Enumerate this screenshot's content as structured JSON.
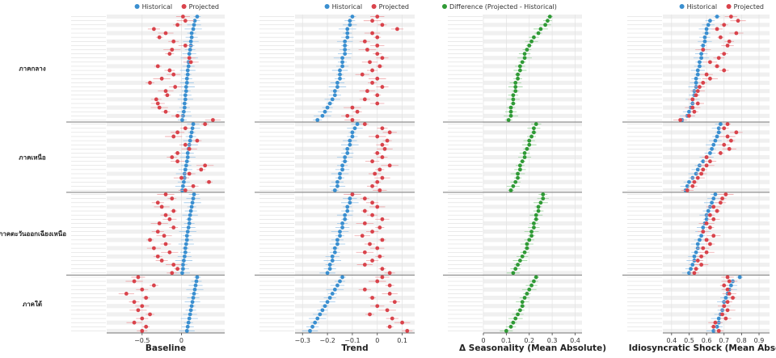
{
  "colors": {
    "historical": "#3a8fd0",
    "projected": "#d9434b",
    "difference": "#2f9a35",
    "historical_ci": "#9cc6e8",
    "projected_ci": "#eda3a6",
    "difference_ci": "#99d09b",
    "separator": "#7a7a7a",
    "stripe": "#f0f0f0",
    "grid": "#e2e2e2"
  },
  "regions": [
    "ภาคกลาง",
    "ภาคเหนือ",
    "ภาคตะวันออกเฉียงเหนือ",
    "ภาคใต้"
  ],
  "region_counts": [
    26,
    17,
    20,
    14
  ],
  "chart_data": [
    {
      "type": "scatter",
      "title": "Baseline",
      "xlim": [
        -0.95,
        0.55
      ],
      "ticks": [
        -0.5,
        0
      ],
      "tick_labels": [
        "−0.5",
        "0"
      ],
      "legend": {
        "position": "top-right",
        "entries": [
          "Historical",
          "Projected"
        ]
      },
      "series": [
        {
          "name": "Historical",
          "values": [
            0.2,
            0.17,
            0.16,
            0.15,
            0.13,
            0.13,
            0.12,
            0.12,
            0.11,
            0.1,
            0.1,
            0.09,
            0.09,
            0.08,
            0.08,
            0.07,
            0.07,
            0.06,
            0.06,
            0.05,
            0.05,
            0.04,
            0.04,
            0.03,
            0.02,
            0.01,
            0.15,
            0.14,
            0.13,
            0.12,
            0.11,
            0.1,
            0.09,
            0.08,
            0.08,
            0.07,
            0.06,
            0.05,
            0.04,
            0.04,
            0.03,
            0.02,
            0.01,
            0.16,
            0.15,
            0.14,
            0.13,
            0.12,
            0.11,
            0.1,
            0.1,
            0.09,
            0.08,
            0.07,
            0.07,
            0.06,
            0.05,
            0.05,
            0.04,
            0.03,
            0.02,
            0.02,
            0.01,
            0.2,
            0.19,
            0.18,
            0.17,
            0.16,
            0.15,
            0.14,
            0.13,
            0.12,
            0.11,
            0.1,
            0.09,
            0.08,
            0.07
          ]
        },
        {
          "name": "Projected",
          "values": [
            0.02,
            0.05,
            -0.05,
            -0.35,
            -0.2,
            -0.28,
            -0.1,
            0.05,
            -0.12,
            -0.15,
            0.1,
            0.12,
            -0.3,
            -0.15,
            -0.1,
            -0.25,
            -0.4,
            -0.08,
            -0.2,
            -0.18,
            -0.32,
            -0.3,
            -0.28,
            -0.2,
            -0.05,
            0.4,
            0.3,
            0.05,
            -0.05,
            -0.1,
            0.2,
            0.05,
            0.1,
            -0.05,
            -0.12,
            -0.05,
            0.3,
            0.25,
            0.1,
            0.0,
            0.35,
            0.15,
            0.05,
            -0.2,
            -0.12,
            -0.3,
            -0.25,
            -0.1,
            -0.2,
            -0.15,
            -0.28,
            -0.1,
            -0.3,
            -0.22,
            -0.4,
            -0.2,
            -0.35,
            -0.15,
            -0.3,
            -0.25,
            -0.1,
            -0.05,
            -0.12,
            -0.55,
            -0.6,
            -0.35,
            -0.5,
            -0.7,
            -0.45,
            -0.6,
            -0.5,
            -0.55,
            -0.4,
            -0.5,
            -0.6,
            -0.45,
            -0.5
          ]
        }
      ]
    },
    {
      "type": "scatter",
      "title": "Trend",
      "xlim": [
        -0.33,
        0.15
      ],
      "ticks": [
        -0.3,
        -0.2,
        -0.1,
        0,
        0.1
      ],
      "tick_labels": [
        "−0.3",
        "−0.2",
        "−0.1",
        "0",
        "0.1"
      ],
      "legend": {
        "position": "top-right",
        "entries": [
          "Historical",
          "Projected"
        ]
      },
      "series": [
        {
          "name": "Historical",
          "values": [
            -0.1,
            -0.11,
            -0.11,
            -0.12,
            -0.12,
            -0.12,
            -0.13,
            -0.13,
            -0.13,
            -0.13,
            -0.14,
            -0.14,
            -0.14,
            -0.15,
            -0.15,
            -0.15,
            -0.16,
            -0.16,
            -0.17,
            -0.17,
            -0.18,
            -0.19,
            -0.2,
            -0.21,
            -0.22,
            -0.24,
            -0.08,
            -0.09,
            -0.1,
            -0.1,
            -0.11,
            -0.11,
            -0.12,
            -0.12,
            -0.13,
            -0.13,
            -0.14,
            -0.14,
            -0.15,
            -0.15,
            -0.16,
            -0.16,
            -0.17,
            -0.1,
            -0.11,
            -0.11,
            -0.12,
            -0.12,
            -0.13,
            -0.13,
            -0.14,
            -0.14,
            -0.15,
            -0.15,
            -0.16,
            -0.16,
            -0.17,
            -0.17,
            -0.18,
            -0.18,
            -0.19,
            -0.19,
            -0.2,
            -0.14,
            -0.15,
            -0.16,
            -0.17,
            -0.18,
            -0.19,
            -0.2,
            -0.21,
            -0.22,
            -0.23,
            -0.24,
            -0.25,
            -0.26,
            -0.27
          ]
        },
        {
          "name": "Projected",
          "values": [
            0.0,
            -0.02,
            0.02,
            0.08,
            -0.02,
            0.0,
            -0.05,
            0.0,
            -0.04,
            0.0,
            0.02,
            -0.03,
            0.01,
            -0.02,
            -0.06,
            0.0,
            -0.02,
            0.02,
            -0.04,
            0.0,
            -0.05,
            0.0,
            -0.1,
            -0.08,
            -0.12,
            -0.1,
            -0.05,
            0.02,
            0.05,
            0.0,
            0.04,
            0.02,
            0.03,
            0.0,
            0.02,
            -0.02,
            0.05,
            0.01,
            -0.01,
            0.02,
            0.0,
            -0.02,
            0.01,
            -0.1,
            -0.05,
            -0.02,
            0.0,
            -0.05,
            -0.02,
            0.02,
            -0.05,
            0.01,
            -0.02,
            -0.06,
            0.02,
            -0.03,
            0.0,
            -0.05,
            0.01,
            -0.02,
            -0.05,
            0.02,
            0.05,
            0.02,
            0.0,
            0.05,
            -0.05,
            0.05,
            -0.02,
            0.07,
            0.0,
            0.04,
            -0.03,
            0.06,
            0.1,
            0.05,
            0.12
          ]
        }
      ]
    },
    {
      "type": "scatter",
      "title": "Δ Seasonality (Mean Absolute)",
      "xlim": [
        0,
        0.43
      ],
      "ticks": [
        0,
        0.1,
        0.2,
        0.3,
        0.4
      ],
      "tick_labels": [
        "0",
        "0.1",
        "0.2",
        "0.3",
        "0.4"
      ],
      "legend": {
        "position": "top-right",
        "entries": [
          "Difference (Projected - Historical)"
        ]
      },
      "series": [
        {
          "name": "Difference (Projected - Historical)",
          "values": [
            0.29,
            0.28,
            0.27,
            0.25,
            0.24,
            0.22,
            0.21,
            0.2,
            0.19,
            0.18,
            0.18,
            0.17,
            0.16,
            0.16,
            0.15,
            0.15,
            0.14,
            0.14,
            0.14,
            0.13,
            0.13,
            0.13,
            0.12,
            0.12,
            0.12,
            0.11,
            0.23,
            0.22,
            0.22,
            0.21,
            0.2,
            0.2,
            0.19,
            0.18,
            0.18,
            0.17,
            0.16,
            0.16,
            0.15,
            0.15,
            0.14,
            0.13,
            0.12,
            0.26,
            0.26,
            0.25,
            0.24,
            0.24,
            0.23,
            0.23,
            0.22,
            0.22,
            0.21,
            0.21,
            0.2,
            0.19,
            0.19,
            0.18,
            0.17,
            0.16,
            0.15,
            0.14,
            0.13,
            0.23,
            0.22,
            0.21,
            0.2,
            0.19,
            0.18,
            0.17,
            0.17,
            0.16,
            0.15,
            0.14,
            0.13,
            0.12,
            0.1
          ]
        }
      ]
    },
    {
      "type": "scatter",
      "title": "Idiosyncratic Shock (Mean Absolute)",
      "xlim": [
        0.35,
        0.96
      ],
      "ticks": [
        0.4,
        0.5,
        0.6,
        0.7,
        0.8,
        0.9
      ],
      "tick_labels": [
        "0.4",
        "0.5",
        "0.6",
        "0.7",
        "0.8",
        "0.9"
      ],
      "legend": {
        "position": "top-right",
        "entries": [
          "Historical",
          "Projected"
        ]
      },
      "series": [
        {
          "name": "Historical",
          "values": [
            0.66,
            0.62,
            0.61,
            0.6,
            0.6,
            0.59,
            0.59,
            0.58,
            0.58,
            0.57,
            0.57,
            0.56,
            0.56,
            0.55,
            0.55,
            0.54,
            0.54,
            0.54,
            0.53,
            0.53,
            0.52,
            0.52,
            0.51,
            0.5,
            0.49,
            0.46,
            0.68,
            0.67,
            0.67,
            0.66,
            0.65,
            0.64,
            0.63,
            0.62,
            0.6,
            0.58,
            0.56,
            0.55,
            0.54,
            0.52,
            0.5,
            0.49,
            0.48,
            0.65,
            0.64,
            0.63,
            0.62,
            0.61,
            0.6,
            0.6,
            0.59,
            0.58,
            0.58,
            0.57,
            0.56,
            0.55,
            0.55,
            0.54,
            0.53,
            0.53,
            0.52,
            0.51,
            0.5,
            0.79,
            0.75,
            0.74,
            0.73,
            0.72,
            0.71,
            0.7,
            0.7,
            0.69,
            0.68,
            0.67,
            0.67,
            0.66,
            0.64
          ]
        },
        {
          "name": "Projected",
          "values": [
            0.74,
            0.78,
            0.7,
            0.66,
            0.77,
            0.68,
            0.73,
            0.72,
            0.58,
            0.7,
            0.67,
            0.62,
            0.66,
            0.7,
            0.6,
            0.62,
            0.58,
            0.56,
            0.55,
            0.54,
            0.52,
            0.55,
            0.52,
            0.53,
            0.5,
            0.45,
            0.72,
            0.7,
            0.77,
            0.72,
            0.74,
            0.7,
            0.73,
            0.68,
            0.6,
            0.62,
            0.6,
            0.58,
            0.57,
            0.55,
            0.53,
            0.52,
            0.49,
            0.71,
            0.69,
            0.68,
            0.64,
            0.66,
            0.62,
            0.64,
            0.6,
            0.62,
            0.58,
            0.64,
            0.6,
            0.62,
            0.58,
            0.6,
            0.57,
            0.55,
            0.57,
            0.54,
            0.53,
            0.72,
            0.73,
            0.7,
            0.72,
            0.73,
            0.75,
            0.72,
            0.7,
            0.72,
            0.69,
            0.71,
            0.65,
            0.64,
            0.67
          ]
        }
      ]
    }
  ]
}
